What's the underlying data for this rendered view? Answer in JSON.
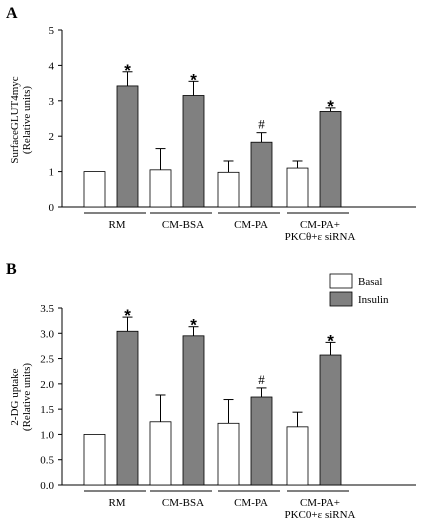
{
  "legend": {
    "entries": [
      {
        "label": "Basal",
        "color": "#ffffff"
      },
      {
        "label": "Insulin",
        "color": "#808080"
      }
    ]
  },
  "chart_data": [
    {
      "type": "bar",
      "panel": "A",
      "ylabel_line1": "SurfaceGLUT4myc",
      "ylabel_line2": "(Relative units)",
      "ylim": [
        0,
        5
      ],
      "yticks": [
        "0",
        "1",
        "2",
        "3",
        "4",
        "5"
      ],
      "categories": [
        {
          "lines": [
            "RM"
          ]
        },
        {
          "lines": [
            "CM-BSA"
          ]
        },
        {
          "lines": [
            "CM-PA"
          ]
        },
        {
          "lines": [
            "CM-PA+",
            "PKCθ+ε siRNA"
          ]
        }
      ],
      "series": [
        {
          "name": "Basal",
          "color": "#ffffff",
          "values": [
            1.0,
            1.05,
            0.98,
            1.1
          ],
          "errors": [
            0,
            0.6,
            0.32,
            0.2
          ]
        },
        {
          "name": "Insulin",
          "color": "#808080",
          "values": [
            3.42,
            3.15,
            1.83,
            2.7
          ],
          "errors": [
            0.4,
            0.4,
            0.27,
            0.1
          ]
        }
      ],
      "markers": [
        "*",
        "*",
        "#",
        "*"
      ]
    },
    {
      "type": "bar",
      "panel": "B",
      "ylabel_line1": "2-DG uptake",
      "ylabel_line2": "(Relative units)",
      "ylim": [
        0,
        3.5
      ],
      "yticks": [
        "0.0",
        "0.5",
        "1.0",
        "1.5",
        "2.0",
        "2.5",
        "3.0",
        "3.5"
      ],
      "categories": [
        {
          "lines": [
            "RM"
          ]
        },
        {
          "lines": [
            "CM-BSA"
          ]
        },
        {
          "lines": [
            "CM-PA"
          ]
        },
        {
          "lines": [
            "CM-PA+",
            "PKC0+ε siRNA"
          ]
        }
      ],
      "series": [
        {
          "name": "Basal",
          "color": "#ffffff",
          "values": [
            1.0,
            1.25,
            1.22,
            1.15
          ],
          "errors": [
            0,
            0.53,
            0.47,
            0.29
          ]
        },
        {
          "name": "Insulin",
          "color": "#808080",
          "values": [
            3.04,
            2.95,
            1.74,
            2.57
          ],
          "errors": [
            0.28,
            0.18,
            0.18,
            0.25
          ]
        }
      ],
      "markers": [
        "*",
        "*",
        "#",
        "*"
      ]
    }
  ]
}
